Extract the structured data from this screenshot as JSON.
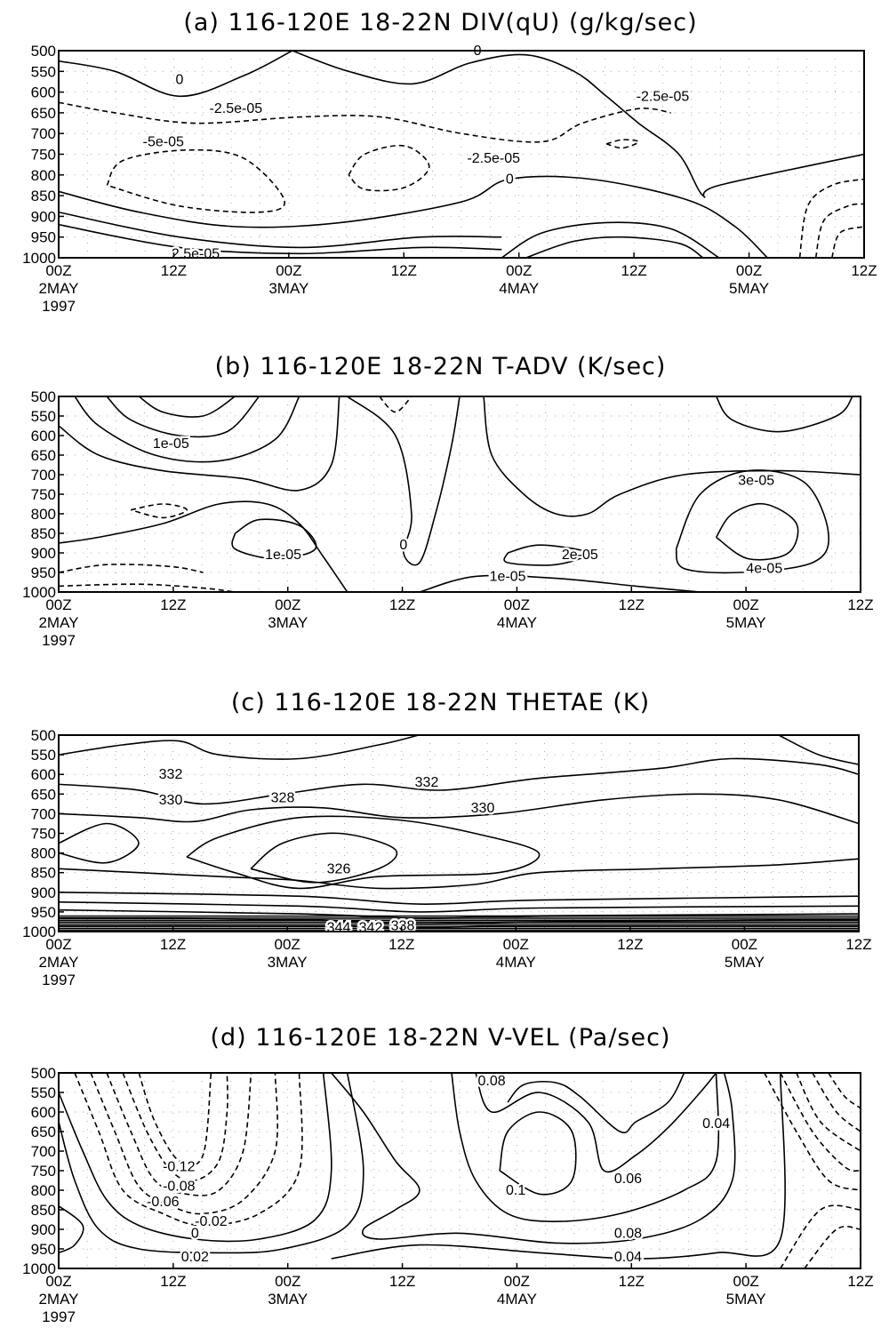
{
  "chart_data": [
    {
      "type": "contour",
      "title": "(a) 116-120E 18-22N DIV(qU) (g/kg/sec)",
      "x_ticks": [
        "00Z",
        "12Z",
        "00Z",
        "12Z",
        "00Z",
        "12Z",
        "00Z",
        "12Z"
      ],
      "x_dates": {
        "0": [
          "2MAY",
          "1997"
        ],
        "2": [
          "3MAY"
        ],
        "4": [
          "4MAY"
        ],
        "6": [
          "5MAY"
        ]
      },
      "y_ticks": [
        "500",
        "550",
        "600",
        "650",
        "700",
        "750",
        "800",
        "850",
        "900",
        "950",
        "1000"
      ],
      "ylim": [
        1000,
        500
      ],
      "grid": "dotted",
      "contour_labels": [
        {
          "text": "0",
          "t": 0.52,
          "p": 500,
          "style": "solid"
        },
        {
          "text": "0",
          "t": 0.15,
          "p": 570,
          "style": "solid"
        },
        {
          "text": "-2.5e-05",
          "t": 0.22,
          "p": 640,
          "style": "dashed"
        },
        {
          "text": "-2.5e-05",
          "t": 0.75,
          "p": 610,
          "style": "dashed"
        },
        {
          "text": "-5e-05",
          "t": 0.13,
          "p": 720,
          "style": "dashed"
        },
        {
          "text": "-2.5e-05",
          "t": 0.54,
          "p": 760,
          "style": "dashed"
        },
        {
          "text": "0",
          "t": 0.56,
          "p": 810,
          "style": "solid"
        },
        {
          "text": "2.5e-05",
          "t": 0.17,
          "p": 990,
          "style": "solid"
        }
      ]
    },
    {
      "type": "contour",
      "title": "(b) 116-120E 18-22N T-ADV (K/sec)",
      "x_ticks": [
        "00Z",
        "12Z",
        "00Z",
        "12Z",
        "00Z",
        "12Z",
        "00Z",
        "12Z"
      ],
      "x_dates": {
        "0": [
          "2MAY",
          "1997"
        ],
        "2": [
          "3MAY"
        ],
        "4": [
          "4MAY"
        ],
        "6": [
          "5MAY"
        ]
      },
      "y_ticks": [
        "500",
        "550",
        "600",
        "650",
        "700",
        "750",
        "800",
        "850",
        "900",
        "950",
        "1000"
      ],
      "ylim": [
        1000,
        500
      ],
      "grid": "dotted",
      "contour_labels": [
        {
          "text": "1e-05",
          "t": 0.14,
          "p": 620,
          "style": "solid"
        },
        {
          "text": "1e-05",
          "t": 0.28,
          "p": 905,
          "style": "solid"
        },
        {
          "text": "0",
          "t": 0.43,
          "p": 880,
          "style": "solid"
        },
        {
          "text": "2e-05",
          "t": 0.65,
          "p": 905,
          "style": "solid"
        },
        {
          "text": "1e-05",
          "t": 0.56,
          "p": 960,
          "style": "solid"
        },
        {
          "text": "3e-05",
          "t": 0.87,
          "p": 715,
          "style": "solid"
        },
        {
          "text": "4e-05",
          "t": 0.88,
          "p": 940,
          "style": "solid"
        }
      ]
    },
    {
      "type": "contour",
      "title": "(c) 116-120E 18-22N THETAE (K)",
      "x_ticks": [
        "00Z",
        "12Z",
        "00Z",
        "12Z",
        "00Z",
        "12Z",
        "00Z",
        "12Z"
      ],
      "x_dates": {
        "0": [
          "2MAY",
          "1997"
        ],
        "2": [
          "3MAY"
        ],
        "4": [
          "4MAY"
        ],
        "6": [
          "5MAY"
        ]
      },
      "y_ticks": [
        "500",
        "550",
        "600",
        "650",
        "700",
        "750",
        "800",
        "850",
        "900",
        "950",
        "1000"
      ],
      "ylim": [
        1000,
        500
      ],
      "grid": "dotted",
      "contour_labels": [
        {
          "text": "332",
          "t": 0.14,
          "p": 600,
          "style": "solid"
        },
        {
          "text": "330",
          "t": 0.14,
          "p": 665,
          "style": "solid"
        },
        {
          "text": "328",
          "t": 0.28,
          "p": 660,
          "style": "solid"
        },
        {
          "text": "332",
          "t": 0.46,
          "p": 620,
          "style": "solid"
        },
        {
          "text": "330",
          "t": 0.53,
          "p": 685,
          "style": "solid"
        },
        {
          "text": "326",
          "t": 0.35,
          "p": 840,
          "style": "solid"
        },
        {
          "text": "344",
          "t": 0.35,
          "p": 990,
          "style": "solid"
        },
        {
          "text": "342",
          "t": 0.39,
          "p": 990,
          "style": "solid"
        },
        {
          "text": "338",
          "t": 0.43,
          "p": 985,
          "style": "solid"
        }
      ]
    },
    {
      "type": "contour",
      "title": "(d) 116-120E 18-22N V-VEL (Pa/sec)",
      "x_ticks": [
        "00Z",
        "12Z",
        "00Z",
        "12Z",
        "00Z",
        "12Z",
        "00Z",
        "12Z"
      ],
      "x_dates": {
        "0": [
          "2MAY"
        ],
        "2": [
          "3MAY"
        ],
        "4": [
          "4MAY"
        ],
        "6": [
          "5MAY"
        ]
      },
      "x_extra": [
        "1997"
      ],
      "y_ticks": [
        "500",
        "550",
        "600",
        "650",
        "700",
        "750",
        "800",
        "850",
        "900",
        "950",
        "1000"
      ],
      "ylim": [
        1000,
        500
      ],
      "grid": "dotted",
      "contour_labels": [
        {
          "text": "0.08",
          "t": 0.54,
          "p": 520,
          "style": "solid"
        },
        {
          "text": "0.04",
          "t": 0.82,
          "p": 630,
          "style": "solid"
        },
        {
          "text": "-0.12",
          "t": 0.15,
          "p": 740,
          "style": "dashed"
        },
        {
          "text": "-0.08",
          "t": 0.15,
          "p": 790,
          "style": "dashed"
        },
        {
          "text": "-0.06",
          "t": 0.13,
          "p": 830,
          "style": "dashed"
        },
        {
          "text": "-0.02",
          "t": 0.19,
          "p": 880,
          "style": "dashed"
        },
        {
          "text": "0",
          "t": 0.17,
          "p": 910,
          "style": "solid"
        },
        {
          "text": "0.02",
          "t": 0.17,
          "p": 970,
          "style": "solid"
        },
        {
          "text": "0.1",
          "t": 0.57,
          "p": 800,
          "style": "solid"
        },
        {
          "text": "0.06",
          "t": 0.71,
          "p": 770,
          "style": "solid"
        },
        {
          "text": "0.08",
          "t": 0.71,
          "p": 910,
          "style": "solid"
        },
        {
          "text": "0.04",
          "t": 0.71,
          "p": 970,
          "style": "solid"
        }
      ]
    }
  ]
}
